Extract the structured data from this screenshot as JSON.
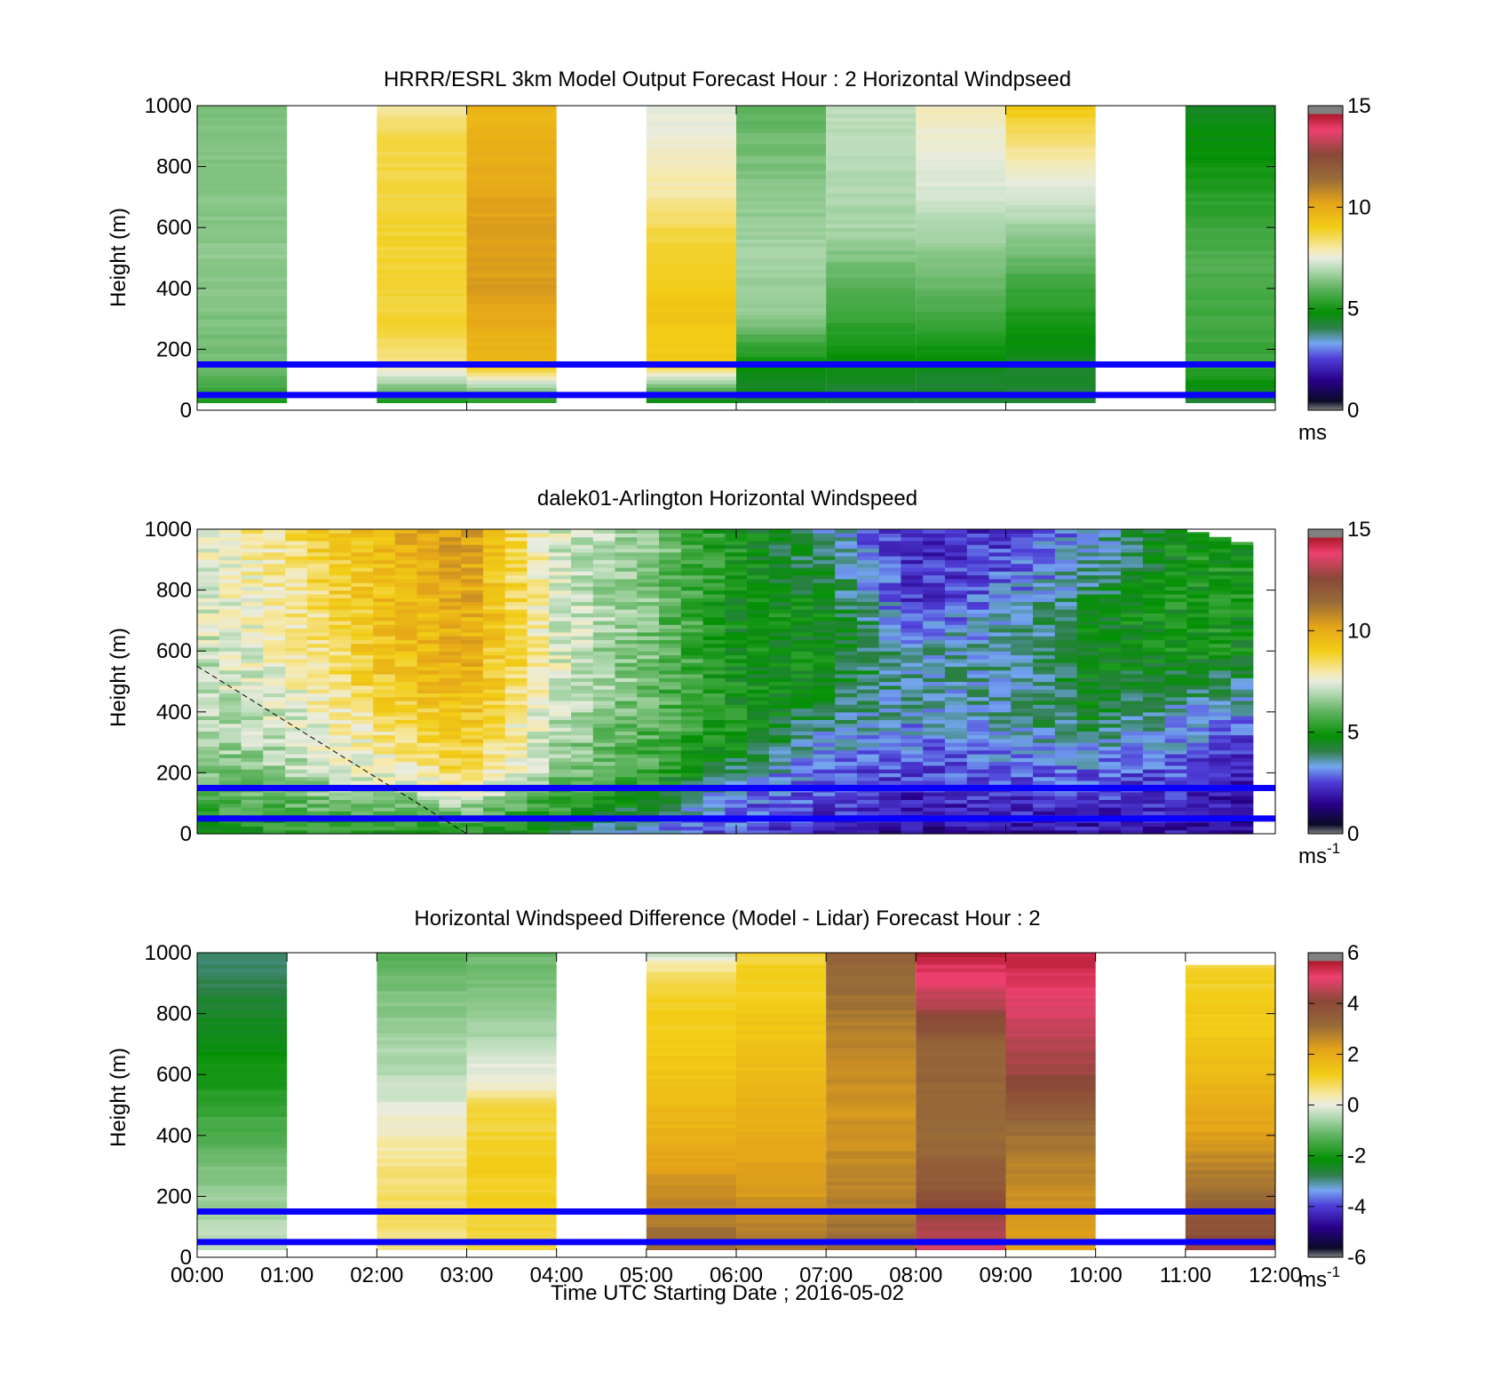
{
  "chart_data": [
    {
      "type": "heatmap",
      "title": "HRRR/ESRL 3km Model Output   Forecast Hour : 2 Horizontal Windpseed",
      "ylabel": "Height (m)",
      "ylim": [
        0,
        1000
      ],
      "yticks": [
        "0",
        "200",
        "400",
        "600",
        "800",
        "1000"
      ],
      "xlim": [
        "00:00",
        "12:00"
      ],
      "colorbar": {
        "ticks": [
          "0",
          "5",
          "10",
          "15"
        ],
        "range": [
          0,
          15
        ],
        "unit": "ms",
        "unit_sup": ""
      },
      "reference_lines_m": [
        150,
        50
      ],
      "blocks": [
        {
          "start": "00:00",
          "end": "01:00",
          "ymin": 25,
          "ymax": 1000,
          "profile": [
            [
              25,
              5.2
            ],
            [
              150,
              6.2
            ],
            [
              500,
              6.5
            ],
            [
              1000,
              6.3
            ]
          ]
        },
        {
          "start": "02:00",
          "end": "03:00",
          "ymin": 25,
          "ymax": 1000,
          "profile": [
            [
              25,
              5
            ],
            [
              100,
              7
            ],
            [
              150,
              8.2
            ],
            [
              300,
              8.8
            ],
            [
              600,
              8.8
            ],
            [
              900,
              8.6
            ],
            [
              1000,
              8
            ]
          ]
        },
        {
          "start": "03:00",
          "end": "04:00",
          "ymin": 25,
          "ymax": 1000,
          "profile": [
            [
              25,
              5
            ],
            [
              100,
              7.5
            ],
            [
              150,
              9.5
            ],
            [
              400,
              10.4
            ],
            [
              700,
              10.2
            ],
            [
              1000,
              9.6
            ]
          ]
        },
        {
          "start": "05:00",
          "end": "06:00",
          "ymin": 25,
          "ymax": 1000,
          "profile": [
            [
              25,
              4.5
            ],
            [
              100,
              7
            ],
            [
              150,
              9
            ],
            [
              300,
              9.2
            ],
            [
              600,
              8.6
            ],
            [
              700,
              8
            ],
            [
              800,
              7.8
            ],
            [
              1000,
              7.4
            ]
          ]
        },
        {
          "start": "06:00",
          "end": "07:00",
          "ymin": 25,
          "ymax": 1000,
          "profile": [
            [
              25,
              4.3
            ],
            [
              150,
              4.8
            ],
            [
              300,
              6.5
            ],
            [
              500,
              6.8
            ],
            [
              1000,
              6
            ]
          ]
        },
        {
          "start": "07:00",
          "end": "08:00",
          "ymin": 25,
          "ymax": 1000,
          "profile": [
            [
              25,
              4.3
            ],
            [
              150,
              4.6
            ],
            [
              300,
              5.5
            ],
            [
              600,
              6.8
            ],
            [
              1000,
              7
            ]
          ]
        },
        {
          "start": "08:00",
          "end": "09:00",
          "ymin": 25,
          "ymax": 1000,
          "profile": [
            [
              25,
              4.2
            ],
            [
              150,
              4.6
            ],
            [
              300,
              5.6
            ],
            [
              700,
              7.3
            ],
            [
              900,
              7.6
            ],
            [
              1000,
              7.8
            ]
          ]
        },
        {
          "start": "09:00",
          "end": "10:00",
          "ymin": 25,
          "ymax": 1000,
          "profile": [
            [
              25,
              4.2
            ],
            [
              150,
              4.4
            ],
            [
              400,
              5.5
            ],
            [
              700,
              7.3
            ],
            [
              850,
              8
            ],
            [
              1000,
              9.2
            ]
          ]
        },
        {
          "start": "11:00",
          "end": "12:00",
          "ymin": 25,
          "ymax": 1000,
          "profile": [
            [
              25,
              4.2
            ],
            [
              150,
              5.5
            ],
            [
              500,
              5.8
            ],
            [
              800,
              5
            ],
            [
              1000,
              4.4
            ]
          ]
        }
      ]
    },
    {
      "type": "heatmap",
      "title": "dalek01-Arlington  Horizontal Windspeed",
      "ylabel": "Height (m)",
      "ylim": [
        0,
        1000
      ],
      "yticks": [
        "0",
        "200",
        "400",
        "600",
        "800",
        "1000"
      ],
      "xlim": [
        "00:00",
        "12:00"
      ],
      "colorbar": {
        "ticks": [
          "0",
          "5",
          "10",
          "15"
        ],
        "range": [
          0,
          15
        ],
        "unit": "ms",
        "unit_sup": "-1"
      },
      "reference_lines_m": [
        150,
        50
      ],
      "profiles_by_hour": [
        {
          "time": "00:00",
          "profile": [
            [
              0,
              5
            ],
            [
              200,
              6.3
            ],
            [
              500,
              7
            ],
            [
              1000,
              7.6
            ]
          ]
        },
        {
          "time": "01:00",
          "profile": [
            [
              0,
              5
            ],
            [
              200,
              6.8
            ],
            [
              500,
              7.6
            ],
            [
              1000,
              8.4
            ]
          ]
        },
        {
          "time": "02:00",
          "profile": [
            [
              0,
              5
            ],
            [
              200,
              7.5
            ],
            [
              500,
              9
            ],
            [
              1000,
              9.6
            ]
          ]
        },
        {
          "time": "03:00",
          "profile": [
            [
              0,
              5
            ],
            [
              200,
              8.6
            ],
            [
              500,
              9.8
            ],
            [
              1000,
              10.4
            ]
          ]
        },
        {
          "time": "04:00",
          "profile": [
            [
              0,
              4.5
            ],
            [
              200,
              6.5
            ],
            [
              500,
              7.4
            ],
            [
              1000,
              7.3
            ]
          ]
        },
        {
          "time": "05:00",
          "profile": [
            [
              0,
              3
            ],
            [
              200,
              5.6
            ],
            [
              500,
              6.2
            ],
            [
              1000,
              6.5
            ]
          ]
        },
        {
          "time": "06:00",
          "profile": [
            [
              0,
              2.6
            ],
            [
              150,
              3.2
            ],
            [
              300,
              5
            ],
            [
              600,
              4.8
            ],
            [
              1000,
              5
            ]
          ]
        },
        {
          "time": "07:00",
          "profile": [
            [
              0,
              2.2
            ],
            [
              200,
              2.8
            ],
            [
              500,
              4.6
            ],
            [
              700,
              4.8
            ],
            [
              1000,
              3.6
            ]
          ]
        },
        {
          "time": "08:00",
          "profile": [
            [
              0,
              1.5
            ],
            [
              200,
              2.5
            ],
            [
              400,
              3.4
            ],
            [
              600,
              3.6
            ],
            [
              800,
              2.2
            ],
            [
              1000,
              2
            ]
          ]
        },
        {
          "time": "09:00",
          "profile": [
            [
              0,
              1.8
            ],
            [
              200,
              2.8
            ],
            [
              400,
              3.7
            ],
            [
              700,
              3.4
            ],
            [
              900,
              2.6
            ],
            [
              1000,
              2.4
            ]
          ]
        },
        {
          "time": "10:00",
          "profile": [
            [
              0,
              1.8
            ],
            [
              200,
              2.8
            ],
            [
              400,
              4.5
            ],
            [
              700,
              4.6
            ],
            [
              900,
              3.5
            ],
            [
              1000,
              3.4
            ]
          ]
        },
        {
          "time": "11:00",
          "profile": [
            [
              0,
              1.8
            ],
            [
              200,
              2.6
            ],
            [
              400,
              3.4
            ],
            [
              600,
              5
            ],
            [
              800,
              5
            ],
            [
              1000,
              5
            ]
          ]
        },
        {
          "time": "11:45",
          "profile": [
            [
              0,
              1.2
            ],
            [
              200,
              2
            ],
            [
              400,
              3
            ],
            [
              600,
              4.8
            ],
            [
              800,
              5
            ],
            [
              950,
              5
            ]
          ]
        }
      ],
      "annotation_line": {
        "from": [
          "00:00",
          550
        ],
        "to": [
          "03:00",
          0
        ],
        "style": "dashed"
      }
    },
    {
      "type": "heatmap",
      "title": "Horizontal Windspeed Difference (Model - Lidar) Forecast Hour : 2",
      "ylabel": "Height (m)",
      "xlabel": "Time UTC  Starting Date ; 2016-05-02",
      "ylim": [
        0,
        1000
      ],
      "yticks": [
        "0",
        "200",
        "400",
        "600",
        "800",
        "1000"
      ],
      "xticks": [
        "00:00",
        "01:00",
        "02:00",
        "03:00",
        "04:00",
        "05:00",
        "06:00",
        "07:00",
        "08:00",
        "09:00",
        "10:00",
        "11:00",
        "12:00"
      ],
      "xlim": [
        "00:00",
        "12:00"
      ],
      "colorbar": {
        "ticks": [
          "-6",
          "-4",
          "-2",
          "0",
          "2",
          "4",
          "6"
        ],
        "range": [
          -6,
          6
        ],
        "unit": "ms",
        "unit_sup": "-1"
      },
      "reference_lines_m": [
        150,
        50
      ],
      "blocks": [
        {
          "start": "00:00",
          "end": "01:00",
          "ymin": 25,
          "ymax": 1000,
          "profile": [
            [
              25,
              -0.3
            ],
            [
              150,
              -0.6
            ],
            [
              300,
              -1
            ],
            [
              600,
              -2
            ],
            [
              1000,
              -3
            ]
          ]
        },
        {
          "start": "02:00",
          "end": "03:00",
          "ymin": 25,
          "ymax": 1000,
          "profile": [
            [
              25,
              0.6
            ],
            [
              200,
              0.8
            ],
            [
              400,
              0.3
            ],
            [
              600,
              -0.4
            ],
            [
              800,
              -0.8
            ],
            [
              1000,
              -1.3
            ]
          ]
        },
        {
          "start": "03:00",
          "end": "04:00",
          "ymin": 25,
          "ymax": 1000,
          "profile": [
            [
              25,
              1
            ],
            [
              300,
              1.2
            ],
            [
              500,
              0.9
            ],
            [
              560,
              0.2
            ],
            [
              800,
              -0.8
            ],
            [
              1000,
              -1.1
            ]
          ]
        },
        {
          "start": "05:00",
          "end": "06:00",
          "ymin": 25,
          "ymax": 1000,
          "profile": [
            [
              25,
              3.2
            ],
            [
              200,
              2.6
            ],
            [
              400,
              1.9
            ],
            [
              600,
              1.4
            ],
            [
              900,
              1
            ],
            [
              970,
              0.3
            ],
            [
              1000,
              -0.3
            ]
          ]
        },
        {
          "start": "06:00",
          "end": "07:00",
          "ymin": 25,
          "ymax": 1000,
          "profile": [
            [
              25,
              3
            ],
            [
              200,
              2.4
            ],
            [
              500,
              1.8
            ],
            [
              800,
              1.3
            ],
            [
              1000,
              1
            ]
          ]
        },
        {
          "start": "07:00",
          "end": "08:00",
          "ymin": 25,
          "ymax": 1000,
          "profile": [
            [
              25,
              3.2
            ],
            [
              200,
              2.7
            ],
            [
              500,
              2.4
            ],
            [
              800,
              2.9
            ],
            [
              1000,
              3.4
            ]
          ]
        },
        {
          "start": "08:00",
          "end": "09:00",
          "ymin": 25,
          "ymax": 1000,
          "profile": [
            [
              25,
              4.8
            ],
            [
              200,
              3.8
            ],
            [
              400,
              3.1
            ],
            [
              700,
              3.4
            ],
            [
              850,
              4.6
            ],
            [
              1000,
              5.5
            ]
          ]
        },
        {
          "start": "09:00",
          "end": "10:00",
          "ymin": 25,
          "ymax": 1000,
          "profile": [
            [
              25,
              2.2
            ],
            [
              200,
              2.5
            ],
            [
              400,
              3
            ],
            [
              600,
              4.2
            ],
            [
              800,
              4.8
            ],
            [
              1000,
              5.5
            ]
          ]
        },
        {
          "start": "11:00",
          "end": "12:00",
          "ymin": 25,
          "ymax": 960,
          "profile": [
            [
              25,
              4.2
            ],
            [
              200,
              3.2
            ],
            [
              400,
              2.2
            ],
            [
              700,
              1.4
            ],
            [
              960,
              1
            ]
          ]
        }
      ]
    }
  ]
}
